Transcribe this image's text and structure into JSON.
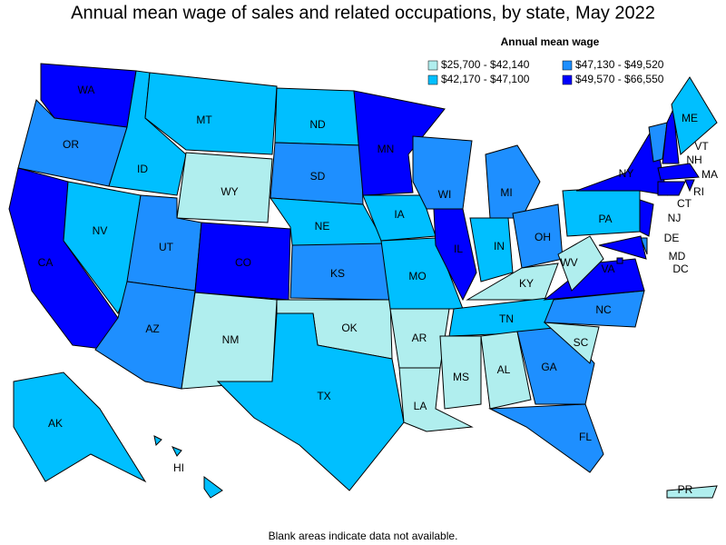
{
  "title": "Annual mean wage of sales and related occupations, by state, May 2022",
  "legend": {
    "title": "Annual mean wage",
    "items": [
      {
        "label": "$25,700 - $42,140",
        "color": "#b0eeee"
      },
      {
        "label": "$42,170 - $47,100",
        "color": "#00bfff"
      },
      {
        "label": "$47,130 - $49,520",
        "color": "#1e8fff"
      },
      {
        "label": "$49,570 - $66,550",
        "color": "#0000ff"
      }
    ]
  },
  "states": [
    {
      "label": "WA",
      "color": "#0000ff"
    },
    {
      "label": "OR",
      "color": "#1e8fff"
    },
    {
      "label": "CA",
      "color": "#0000ff"
    },
    {
      "label": "NV",
      "color": "#00bfff"
    },
    {
      "label": "ID",
      "color": "#00bfff"
    },
    {
      "label": "MT",
      "color": "#00bfff"
    },
    {
      "label": "WY",
      "color": "#b0eeee"
    },
    {
      "label": "UT",
      "color": "#1e8fff"
    },
    {
      "label": "AZ",
      "color": "#1e8fff"
    },
    {
      "label": "CO",
      "color": "#0000ff"
    },
    {
      "label": "NM",
      "color": "#b0eeee"
    },
    {
      "label": "ND",
      "color": "#00bfff"
    },
    {
      "label": "SD",
      "color": "#1e8fff"
    },
    {
      "label": "NE",
      "color": "#00bfff"
    },
    {
      "label": "KS",
      "color": "#1e8fff"
    },
    {
      "label": "OK",
      "color": "#b0eeee"
    },
    {
      "label": "TX",
      "color": "#00bfff"
    },
    {
      "label": "MN",
      "color": "#0000ff"
    },
    {
      "label": "IA",
      "color": "#00bfff"
    },
    {
      "label": "MO",
      "color": "#00bfff"
    },
    {
      "label": "AR",
      "color": "#b0eeee"
    },
    {
      "label": "LA",
      "color": "#b0eeee"
    },
    {
      "label": "WI",
      "color": "#1e8fff"
    },
    {
      "label": "IL",
      "color": "#0000ff"
    },
    {
      "label": "MI",
      "color": "#1e8fff"
    },
    {
      "label": "IN",
      "color": "#00bfff"
    },
    {
      "label": "OH",
      "color": "#1e8fff"
    },
    {
      "label": "KY",
      "color": "#b0eeee"
    },
    {
      "label": "TN",
      "color": "#00bfff"
    },
    {
      "label": "MS",
      "color": "#b0eeee"
    },
    {
      "label": "AL",
      "color": "#b0eeee"
    },
    {
      "label": "GA",
      "color": "#1e8fff"
    },
    {
      "label": "FL",
      "color": "#1e8fff"
    },
    {
      "label": "SC",
      "color": "#b0eeee"
    },
    {
      "label": "NC",
      "color": "#1e8fff"
    },
    {
      "label": "VA",
      "color": "#0000ff"
    },
    {
      "label": "WV",
      "color": "#b0eeee"
    },
    {
      "label": "PA",
      "color": "#00bfff"
    },
    {
      "label": "NY",
      "color": "#0000ff"
    },
    {
      "label": "NJ",
      "color": "#0000ff"
    },
    {
      "label": "VT",
      "color": "#1e8fff"
    },
    {
      "label": "NH",
      "color": "#0000ff"
    },
    {
      "label": "ME",
      "color": "#00bfff"
    },
    {
      "label": "MA",
      "color": "#0000ff"
    },
    {
      "label": "RI",
      "color": "#0000ff"
    },
    {
      "label": "CT",
      "color": "#0000ff"
    },
    {
      "label": "DE",
      "color": "#1e8fff"
    },
    {
      "label": "MD",
      "color": "#0000ff"
    },
    {
      "label": "DC",
      "color": "#0000ff"
    },
    {
      "label": "AK",
      "color": "#00bfff"
    },
    {
      "label": "HI",
      "color": "#00bfff"
    },
    {
      "label": "PR",
      "color": "#b0eeee"
    }
  ],
  "footnote": "Blank areas indicate data not available."
}
